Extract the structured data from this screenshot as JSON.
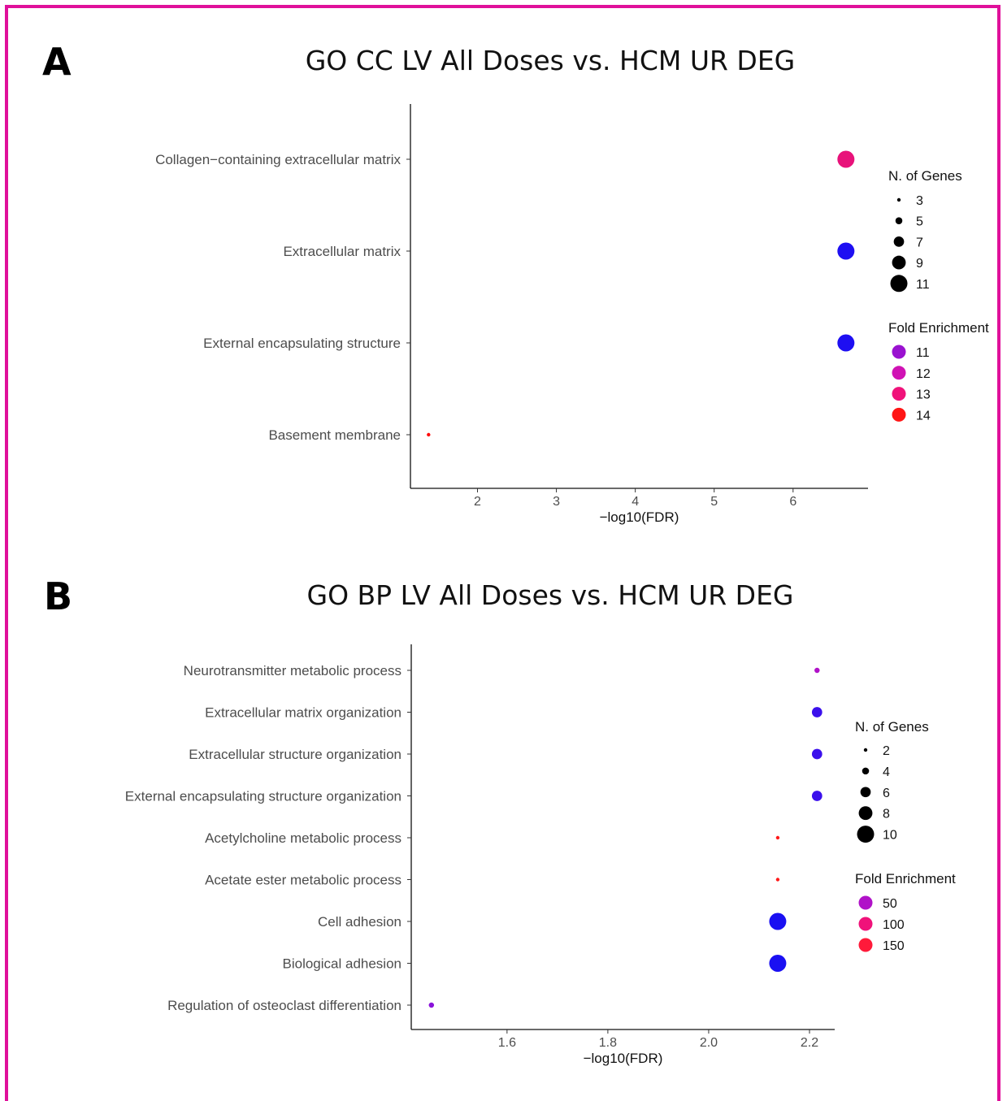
{
  "chart_data": [
    {
      "type": "scatter",
      "panel_label": "A",
      "title": "GO CC LV All Doses vs. HCM UR DEG",
      "xlabel": "−log10(FDR)",
      "ylabel": "",
      "xlim": [
        1.15,
        6.95
      ],
      "xticks": [
        2,
        3,
        4,
        5,
        6
      ],
      "categories": [
        "Collagen−containing extracellular matrix",
        "Extracellular matrix",
        "External encapsulating structure",
        "Basement membrane"
      ],
      "points": [
        {
          "category": "Collagen−containing extracellular matrix",
          "x": 6.67,
          "n_genes": 11,
          "fold_enrichment": 12.8,
          "color": "#e8127a"
        },
        {
          "category": "Extracellular matrix",
          "x": 6.67,
          "n_genes": 11,
          "fold_enrichment": 10.8,
          "color": "#1e0ff2"
        },
        {
          "category": "External encapsulating structure",
          "x": 6.67,
          "n_genes": 11,
          "fold_enrichment": 10.8,
          "color": "#1e0ff2"
        },
        {
          "category": "Basement membrane",
          "x": 1.38,
          "n_genes": 3,
          "fold_enrichment": 14,
          "color": "#ff0a0a"
        }
      ],
      "size_legend": {
        "title": "N. of Genes",
        "values": [
          3,
          5,
          7,
          9,
          11
        ]
      },
      "color_legend": {
        "title": "Fold Enrichment",
        "items": [
          {
            "label": "11",
            "color": "#9a12d0"
          },
          {
            "label": "12",
            "color": "#d012b4"
          },
          {
            "label": "13",
            "color": "#f0127a"
          },
          {
            "label": "14",
            "color": "#ff1515"
          }
        ]
      }
    },
    {
      "type": "scatter",
      "panel_label": "B",
      "title": "GO BP LV All Doses vs. HCM UR DEG",
      "xlabel": "−log10(FDR)",
      "ylabel": "",
      "xlim": [
        1.41,
        2.25
      ],
      "xticks": [
        "1.6",
        "1.8",
        "2.0",
        "2.2"
      ],
      "categories": [
        "Neurotransmitter metabolic process",
        "Extracellular matrix organization",
        "Extracellular structure organization",
        "External encapsulating structure organization",
        "Acetylcholine metabolic process",
        "Acetate ester metabolic process",
        "Cell adhesion",
        "Biological adhesion",
        "Regulation of osteoclast differentiation"
      ],
      "points": [
        {
          "category": "Neurotransmitter metabolic process",
          "x": 2.215,
          "n_genes": 3,
          "fold_enrichment": 45,
          "color": "#b012c8"
        },
        {
          "category": "Extracellular matrix organization",
          "x": 2.215,
          "n_genes": 6,
          "fold_enrichment": 20,
          "color": "#3b10ec"
        },
        {
          "category": "Extracellular structure organization",
          "x": 2.215,
          "n_genes": 6,
          "fold_enrichment": 20,
          "color": "#3b10ec"
        },
        {
          "category": "External encapsulating structure organization",
          "x": 2.215,
          "n_genes": 6,
          "fold_enrichment": 20,
          "color": "#3b10ec"
        },
        {
          "category": "Acetylcholine metabolic process",
          "x": 2.137,
          "n_genes": 2,
          "fold_enrichment": 150,
          "color": "#ff1a1a"
        },
        {
          "category": "Acetate ester metabolic process",
          "x": 2.137,
          "n_genes": 2,
          "fold_enrichment": 150,
          "color": "#ff1a1a"
        },
        {
          "category": "Cell adhesion",
          "x": 2.137,
          "n_genes": 10,
          "fold_enrichment": 8,
          "color": "#1a10f2"
        },
        {
          "category": "Biological adhesion",
          "x": 2.137,
          "n_genes": 10,
          "fold_enrichment": 8,
          "color": "#1a10f2"
        },
        {
          "category": "Regulation of osteoclast differentiation",
          "x": 1.45,
          "n_genes": 3,
          "fold_enrichment": 30,
          "color": "#8a12da"
        }
      ],
      "size_legend": {
        "title": "N. of Genes",
        "values": [
          2,
          4,
          6,
          8,
          10
        ]
      },
      "color_legend": {
        "title": "Fold Enrichment",
        "items": [
          {
            "label": "50",
            "color": "#b012c8"
          },
          {
            "label": "100",
            "color": "#f0127a"
          },
          {
            "label": "150",
            "color": "#ff1a3a"
          }
        ]
      }
    }
  ]
}
